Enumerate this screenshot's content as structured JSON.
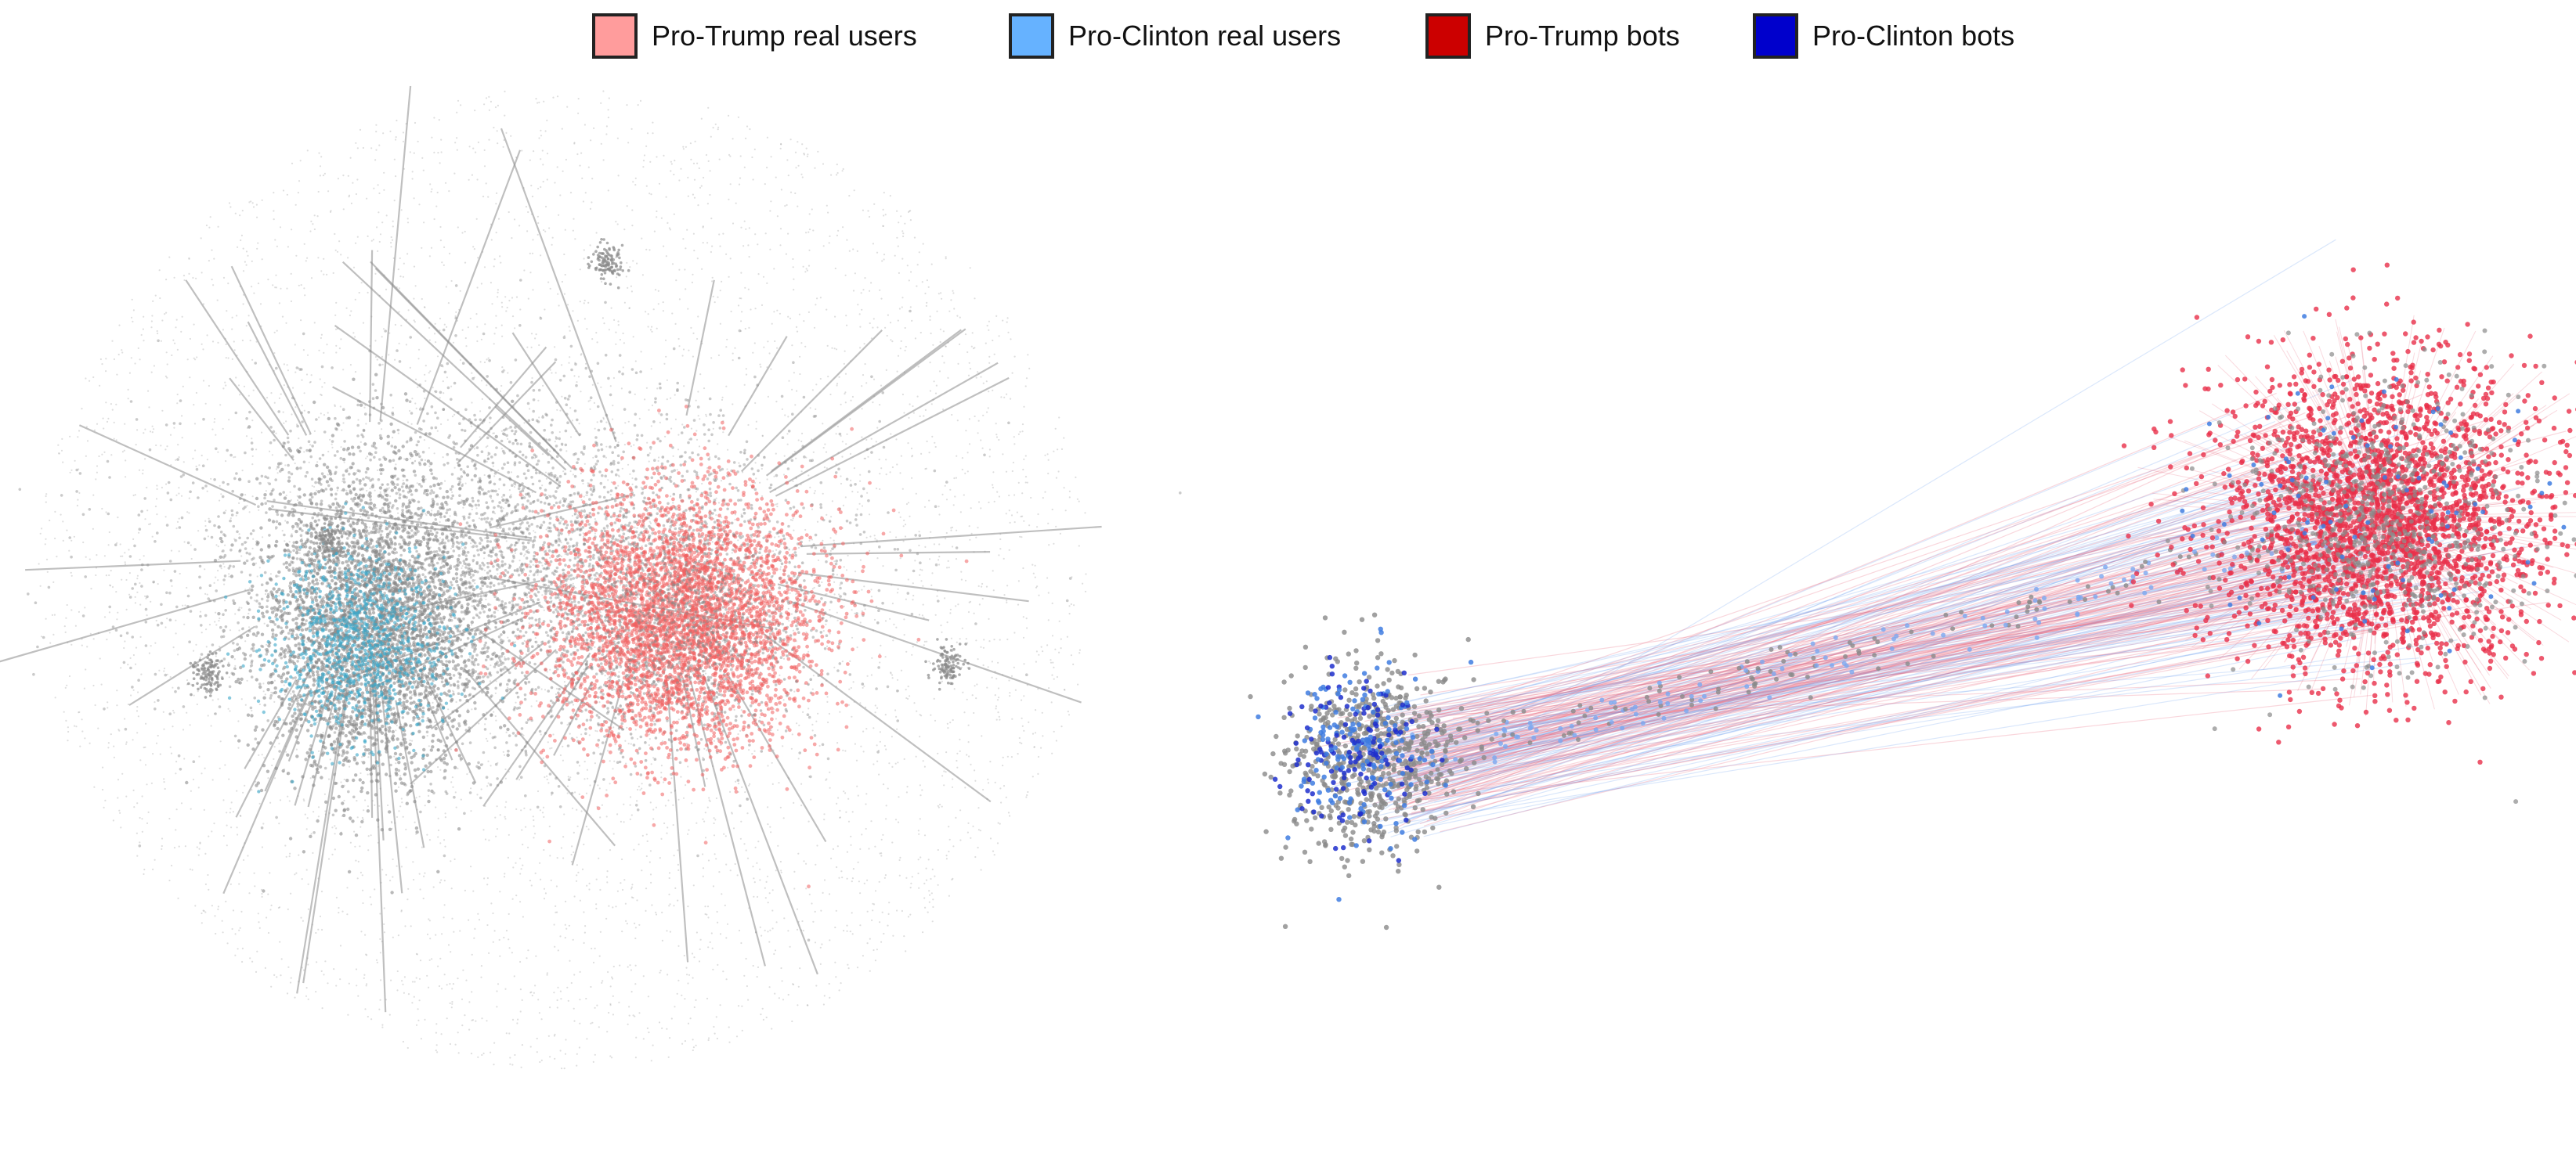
{
  "legend": [
    {
      "label": "Pro-Trump real users",
      "color": "#ff9c9c"
    },
    {
      "label": "Pro-Clinton real users",
      "color": "#66b2ff"
    },
    {
      "label": "Pro-Trump bots",
      "color": "#cc0000"
    },
    {
      "label": "Pro-Clinton bots",
      "color": "#0000cc"
    }
  ],
  "colors": {
    "neutral_node": "#8a8a8a",
    "left_trump_cluster": "#f06060",
    "left_clinton_cluster": "#3aa6c8",
    "right_trump_cluster": "#e8304a",
    "right_clinton_cluster": "#3f7de0",
    "edge_trump": "#e86a80",
    "edge_clinton": "#7aa8f0"
  },
  "panels": [
    {
      "name": "full-retweet-network"
    },
    {
      "name": "core-retweet-network"
    }
  ]
}
